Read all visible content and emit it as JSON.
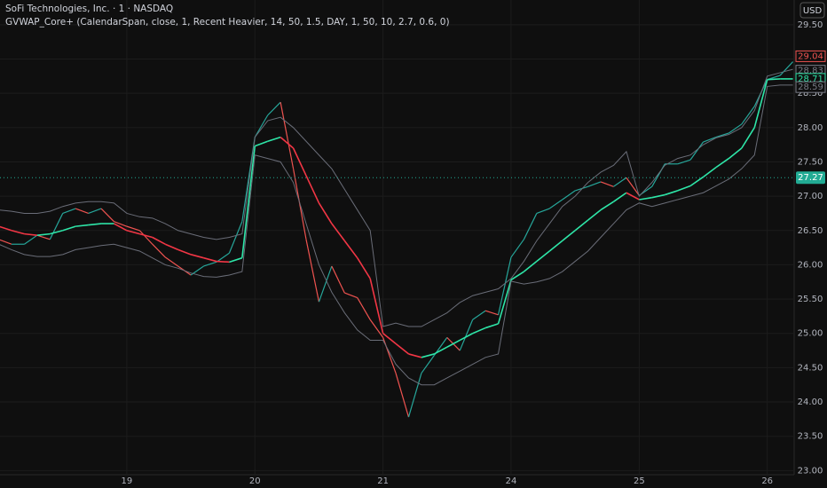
{
  "chart_data": {
    "type": "line",
    "title": "SoFi Technologies, Inc. · 1 · NASDAQ",
    "subtitle": "GVWAP_Core+ (CalendarSpan, close, 1, Recent Heavier, 14, 50, 1.5, DAY, 1, 50, 10, 2.7, 0.6, 0)",
    "currency": "USD",
    "x": [
      0.0,
      0.1,
      0.2,
      0.3,
      0.4,
      0.5,
      0.6,
      0.7,
      0.8,
      0.9,
      1.0,
      1.1,
      1.2,
      1.3,
      1.4,
      1.5,
      1.6,
      1.7,
      1.8,
      1.9,
      2.0,
      2.1,
      2.2,
      2.3,
      2.4,
      2.5,
      2.6,
      2.7,
      2.8,
      2.9,
      3.0,
      3.1,
      3.2,
      3.3,
      3.4,
      3.5,
      3.6,
      3.7,
      3.8,
      3.9,
      4.0,
      4.1,
      4.2,
      4.3,
      4.4,
      4.5,
      4.6,
      4.7,
      4.8,
      4.9,
      5.0,
      5.1,
      5.2,
      5.3,
      5.4,
      5.5,
      5.6,
      5.7,
      5.8,
      5.9,
      6.0,
      6.1,
      6.2
    ],
    "xlim": [
      0.01,
      6.21
    ],
    "xticks": [
      {
        "value": 1,
        "label": "19"
      },
      {
        "value": 2,
        "label": "20"
      },
      {
        "value": 3,
        "label": "21"
      },
      {
        "value": 4,
        "label": "24"
      },
      {
        "value": 5,
        "label": "25"
      },
      {
        "value": 6,
        "label": "26"
      }
    ],
    "ylim": [
      22.94,
      29.86
    ],
    "yticks": [
      {
        "value": 23,
        "label": "23.00"
      },
      {
        "value": 23.5,
        "label": "23.50"
      },
      {
        "value": 24,
        "label": "24.00"
      },
      {
        "value": 24.5,
        "label": "24.50"
      },
      {
        "value": 25,
        "label": "25.00"
      },
      {
        "value": 25.5,
        "label": "25.50"
      },
      {
        "value": 26,
        "label": "26.00"
      },
      {
        "value": 26.5,
        "label": "26.50"
      },
      {
        "value": 27,
        "label": "27.00"
      },
      {
        "value": 27.5,
        "label": "27.50"
      },
      {
        "value": 28,
        "label": "28.00"
      },
      {
        "value": 28.5,
        "label": "28.50"
      },
      {
        "value": 29,
        "label": "29.00"
      },
      {
        "value": 29.5,
        "label": "29.50"
      }
    ],
    "grid": true,
    "series": [
      {
        "up_color": "#26a69a",
        "down_color": "#ef5350",
        "values": [
          26.37,
          26.3,
          26.3,
          26.43,
          26.37,
          26.75,
          26.82,
          26.75,
          26.82,
          26.63,
          26.56,
          26.5,
          26.3,
          26.11,
          25.98,
          25.85,
          25.98,
          26.04,
          26.17,
          26.63,
          27.86,
          28.18,
          28.37,
          27.4,
          26.37,
          25.46,
          25.98,
          25.59,
          25.52,
          25.2,
          24.94,
          24.42,
          23.78,
          24.42,
          24.68,
          24.94,
          24.75,
          25.2,
          25.33,
          25.27,
          26.11,
          26.37,
          26.75,
          26.82,
          26.95,
          27.08,
          27.14,
          27.21,
          27.14,
          27.27,
          27.01,
          27.14,
          27.47,
          27.47,
          27.53,
          27.79,
          27.86,
          27.92,
          28.05,
          28.31,
          28.7,
          28.76,
          28.96
        ]
      },
      {
        "up_color": "#2ee6a8",
        "down_color": "#f23645",
        "values": [
          26.56,
          26.5,
          26.45,
          26.43,
          26.45,
          26.5,
          26.56,
          26.58,
          26.6,
          26.6,
          26.5,
          26.45,
          26.4,
          26.3,
          26.22,
          26.15,
          26.1,
          26.05,
          26.04,
          26.1,
          27.73,
          27.8,
          27.86,
          27.7,
          27.3,
          26.9,
          26.6,
          26.35,
          26.1,
          25.8,
          25.0,
          24.85,
          24.7,
          24.65,
          24.7,
          24.8,
          24.9,
          25.0,
          25.08,
          25.14,
          25.78,
          25.9,
          26.05,
          26.2,
          26.35,
          26.5,
          26.65,
          26.8,
          26.92,
          27.05,
          26.95,
          26.98,
          27.02,
          27.08,
          27.15,
          27.28,
          27.42,
          27.55,
          27.7,
          28.0,
          28.7,
          28.71,
          28.71
        ]
      },
      {
        "color": "#6a6d78",
        "values": [
          26.8,
          26.78,
          26.75,
          26.75,
          26.78,
          26.85,
          26.9,
          26.92,
          26.92,
          26.9,
          26.75,
          26.7,
          26.68,
          26.6,
          26.5,
          26.45,
          26.4,
          26.37,
          26.4,
          26.45,
          27.86,
          28.1,
          28.15,
          28.0,
          27.8,
          27.6,
          27.4,
          27.1,
          26.8,
          26.5,
          25.1,
          25.15,
          25.1,
          25.1,
          25.2,
          25.3,
          25.45,
          25.55,
          25.6,
          25.65,
          25.8,
          26.05,
          26.35,
          26.6,
          26.85,
          27.0,
          27.2,
          27.35,
          27.45,
          27.65,
          27.0,
          27.2,
          27.45,
          27.55,
          27.6,
          27.75,
          27.85,
          27.9,
          28.0,
          28.25,
          28.75,
          28.8,
          28.85
        ]
      },
      {
        "color": "#6a6d78",
        "values": [
          26.3,
          26.22,
          26.15,
          26.12,
          26.12,
          26.15,
          26.22,
          26.25,
          26.28,
          26.3,
          26.25,
          26.2,
          26.1,
          26.0,
          25.95,
          25.88,
          25.83,
          25.82,
          25.85,
          25.9,
          27.6,
          27.55,
          27.5,
          27.2,
          26.6,
          26.0,
          25.6,
          25.3,
          25.05,
          24.9,
          24.9,
          24.55,
          24.35,
          24.25,
          24.25,
          24.35,
          24.45,
          24.55,
          24.65,
          24.7,
          25.76,
          25.72,
          25.75,
          25.8,
          25.9,
          26.05,
          26.2,
          26.4,
          26.6,
          26.8,
          26.9,
          26.85,
          26.9,
          26.95,
          27.0,
          27.05,
          27.15,
          27.25,
          27.4,
          27.6,
          28.6,
          28.62,
          28.62
        ]
      }
    ],
    "price_tags": [
      {
        "value": 29.04,
        "color": "#ef5350"
      },
      {
        "value": 28.83,
        "color": "#787b86"
      },
      {
        "value": 28.71,
        "color": "#2ee6a8"
      },
      {
        "value": 28.59,
        "color": "#787b86"
      }
    ],
    "last_price": {
      "value": 27.27,
      "color": "#22ab94"
    }
  }
}
